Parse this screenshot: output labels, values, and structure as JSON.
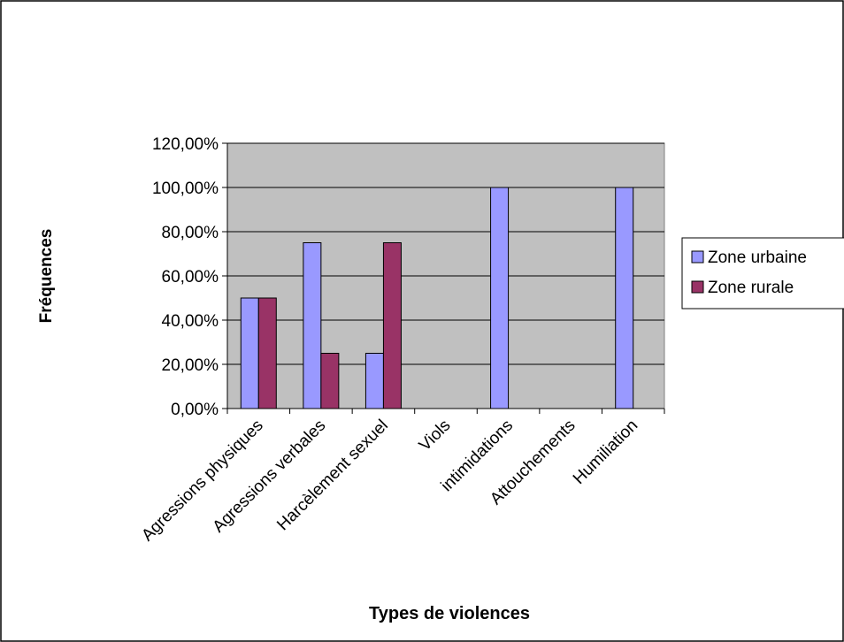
{
  "chart_data": {
    "type": "bar",
    "categories": [
      "Agressions physiques",
      "Agressions verbales",
      "Harcèlement sexuel",
      "Viols",
      "intimidations",
      "Attouchements",
      "Humiliation"
    ],
    "series": [
      {
        "name": "Zone urbaine",
        "color": "#9999ff",
        "values": [
          0.5,
          0.75,
          0.25,
          0,
          1.0,
          0,
          1.0
        ]
      },
      {
        "name": "Zone rurale",
        "color": "#993366",
        "values": [
          0.5,
          0.25,
          0.75,
          0,
          0,
          0,
          0
        ]
      }
    ],
    "yticks": [
      "0,00%",
      "20,00%",
      "40,00%",
      "60,00%",
      "80,00%",
      "100,00%",
      "120,00%"
    ],
    "ylim": [
      0,
      1.2
    ],
    "xlabel": "Types de violences",
    "ylabel": "Fréquences",
    "grid": true,
    "legend_position": "right",
    "plot_background": "#c0c0c0"
  }
}
